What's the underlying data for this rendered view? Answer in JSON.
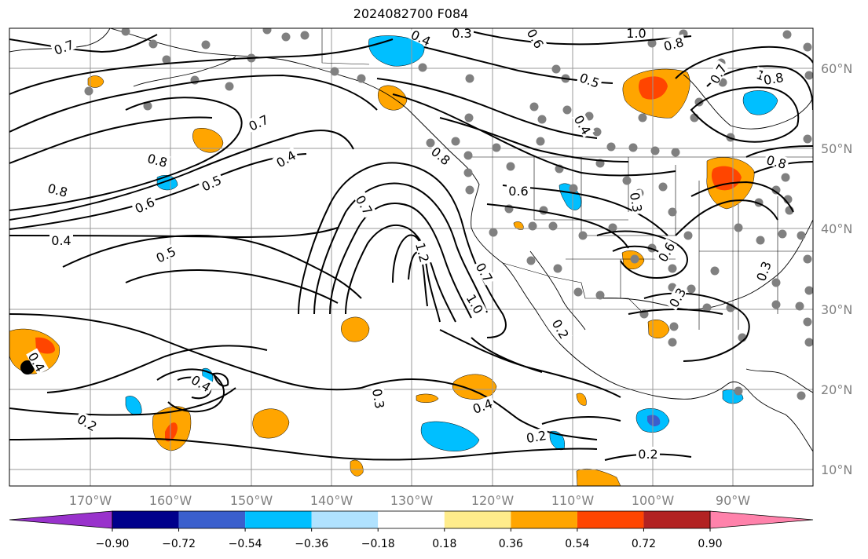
{
  "title": "2024082700 F084",
  "lat_labels": [
    "60°N",
    "50°N",
    "40°N",
    "30°N",
    "20°N",
    "10°N"
  ],
  "lon_labels": [
    "170°W",
    "160°W",
    "150°W",
    "140°W",
    "130°W",
    "120°W",
    "110°W",
    "100°W",
    "90°W"
  ],
  "colorbar": {
    "ticks": [
      "−0.90",
      "−0.72",
      "−0.54",
      "−0.36",
      "−0.18",
      "0.18",
      "0.36",
      "0.54",
      "0.72",
      "0.90"
    ],
    "colors": [
      "#9932cc",
      "#00008b",
      "#3a5fcd",
      "#00bfff",
      "#b0e2ff",
      "#ffffff",
      "#ffec8b",
      "#ffa500",
      "#ff4500",
      "#b22222",
      "#ff82ab"
    ]
  },
  "contour_labels": [
    "0.7",
    "0.4",
    "0.3",
    "0.6",
    "1.0",
    "0.8",
    "0.7",
    "0.5",
    "1.0",
    "0.4",
    "0.7",
    "0.8",
    "0.4",
    "0.5",
    "0.6",
    "0.8",
    "0.4",
    "0.5",
    "0.7",
    "0.8",
    "1.2",
    "0.7",
    "1.0",
    "0.6",
    "0.8",
    "0.3",
    "0.6",
    "0.3",
    "0.2",
    "0.3",
    "0.4",
    "0.2",
    "0.2",
    "0.2",
    "0.4",
    "0.4",
    "0.8",
    "0.3"
  ],
  "colors": {
    "land": "#ffffff",
    "contour": "#000000",
    "grid": "#999999",
    "station": "#808080",
    "orange": "#ffa500",
    "red": "#ff4500",
    "blue": "#00bfff",
    "darkblue": "#3a5fcd"
  }
}
